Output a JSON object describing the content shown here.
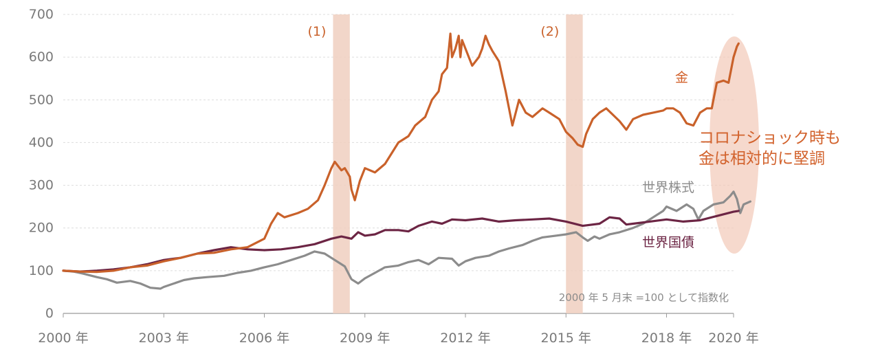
{
  "chart_data": {
    "type": "line",
    "title": "",
    "xlabel": "",
    "ylabel": "",
    "xlim": [
      2000.0,
      2020.0
    ],
    "ylim": [
      0,
      700
    ],
    "yticks": [
      0,
      100,
      200,
      300,
      400,
      500,
      600,
      700
    ],
    "xtick_labels": [
      {
        "x": 2000,
        "label": "2000 年"
      },
      {
        "x": 2003,
        "label": "2003 年"
      },
      {
        "x": 2006,
        "label": "2006 年"
      },
      {
        "x": 2009,
        "label": "2009 年"
      },
      {
        "x": 2012,
        "label": "2012 年"
      },
      {
        "x": 2015,
        "label": "2015 年"
      },
      {
        "x": 2018,
        "label": "2018 年"
      },
      {
        "x": 2020,
        "label": "2020 年"
      }
    ],
    "grid": "horizontal dashed",
    "shaded_periods": [
      {
        "label": "(1)",
        "start": 2008.05,
        "end": 2008.55
      },
      {
        "label": "(2)",
        "start": 2015.0,
        "end": 2015.5
      }
    ],
    "note": "2000 年 5 月末 =100 として指数化",
    "highlight_text": [
      "コロナショック時も",
      "金は相対的に堅調"
    ],
    "series": [
      {
        "name": "金",
        "color": "#c9612a",
        "label_color": "#d2622c",
        "points": [
          [
            2000.0,
            100
          ],
          [
            2000.5,
            98
          ],
          [
            2001.0,
            97
          ],
          [
            2001.5,
            100
          ],
          [
            2002.0,
            108
          ],
          [
            2002.5,
            112
          ],
          [
            2003.0,
            122
          ],
          [
            2003.5,
            130
          ],
          [
            2004.0,
            140
          ],
          [
            2004.5,
            142
          ],
          [
            2005.0,
            150
          ],
          [
            2005.5,
            155
          ],
          [
            2006.0,
            175
          ],
          [
            2006.2,
            210
          ],
          [
            2006.4,
            235
          ],
          [
            2006.6,
            225
          ],
          [
            2007.0,
            235
          ],
          [
            2007.3,
            245
          ],
          [
            2007.6,
            265
          ],
          [
            2007.8,
            300
          ],
          [
            2008.0,
            340
          ],
          [
            2008.1,
            355
          ],
          [
            2008.3,
            335
          ],
          [
            2008.4,
            340
          ],
          [
            2008.55,
            320
          ],
          [
            2008.6,
            290
          ],
          [
            2008.7,
            265
          ],
          [
            2008.85,
            310
          ],
          [
            2009.0,
            340
          ],
          [
            2009.3,
            330
          ],
          [
            2009.6,
            350
          ],
          [
            2010.0,
            400
          ],
          [
            2010.3,
            415
          ],
          [
            2010.5,
            440
          ],
          [
            2010.8,
            460
          ],
          [
            2011.0,
            500
          ],
          [
            2011.2,
            520
          ],
          [
            2011.3,
            560
          ],
          [
            2011.45,
            575
          ],
          [
            2011.55,
            655
          ],
          [
            2011.6,
            600
          ],
          [
            2011.7,
            620
          ],
          [
            2011.8,
            650
          ],
          [
            2011.85,
            600
          ],
          [
            2011.9,
            640
          ],
          [
            2012.0,
            620
          ],
          [
            2012.2,
            580
          ],
          [
            2012.4,
            600
          ],
          [
            2012.5,
            620
          ],
          [
            2012.6,
            650
          ],
          [
            2012.7,
            630
          ],
          [
            2012.8,
            615
          ],
          [
            2013.0,
            590
          ],
          [
            2013.2,
            520
          ],
          [
            2013.4,
            440
          ],
          [
            2013.6,
            500
          ],
          [
            2013.8,
            470
          ],
          [
            2014.0,
            460
          ],
          [
            2014.3,
            480
          ],
          [
            2014.5,
            470
          ],
          [
            2014.8,
            455
          ],
          [
            2015.0,
            425
          ],
          [
            2015.2,
            410
          ],
          [
            2015.35,
            395
          ],
          [
            2015.5,
            390
          ],
          [
            2015.6,
            420
          ],
          [
            2015.8,
            455
          ],
          [
            2016.0,
            470
          ],
          [
            2016.2,
            480
          ],
          [
            2016.4,
            465
          ],
          [
            2016.6,
            450
          ],
          [
            2016.8,
            430
          ],
          [
            2017.0,
            455
          ],
          [
            2017.3,
            465
          ],
          [
            2017.6,
            470
          ],
          [
            2017.9,
            475
          ],
          [
            2018.0,
            480
          ],
          [
            2018.2,
            480
          ],
          [
            2018.4,
            470
          ],
          [
            2018.6,
            445
          ],
          [
            2018.8,
            440
          ],
          [
            2019.0,
            470
          ],
          [
            2019.2,
            480
          ],
          [
            2019.35,
            480
          ],
          [
            2019.5,
            540
          ],
          [
            2019.7,
            545
          ],
          [
            2019.85,
            540
          ],
          [
            2020.0,
            600
          ],
          [
            2020.1,
            625
          ],
          [
            2020.15,
            632
          ]
        ]
      },
      {
        "name": "世界国債",
        "color": "#6c2544",
        "label_color": "#6c2544",
        "points": [
          [
            2000.0,
            100
          ],
          [
            2000.5,
            98
          ],
          [
            2001.0,
            100
          ],
          [
            2001.5,
            103
          ],
          [
            2002.0,
            108
          ],
          [
            2002.5,
            115
          ],
          [
            2003.0,
            125
          ],
          [
            2003.5,
            130
          ],
          [
            2004.0,
            140
          ],
          [
            2004.5,
            148
          ],
          [
            2005.0,
            155
          ],
          [
            2005.5,
            150
          ],
          [
            2006.0,
            148
          ],
          [
            2006.5,
            150
          ],
          [
            2007.0,
            155
          ],
          [
            2007.5,
            162
          ],
          [
            2008.0,
            175
          ],
          [
            2008.3,
            180
          ],
          [
            2008.6,
            175
          ],
          [
            2008.8,
            190
          ],
          [
            2009.0,
            182
          ],
          [
            2009.3,
            185
          ],
          [
            2009.6,
            195
          ],
          [
            2010.0,
            195
          ],
          [
            2010.3,
            192
          ],
          [
            2010.6,
            205
          ],
          [
            2011.0,
            215
          ],
          [
            2011.3,
            210
          ],
          [
            2011.6,
            220
          ],
          [
            2012.0,
            218
          ],
          [
            2012.5,
            222
          ],
          [
            2013.0,
            215
          ],
          [
            2013.5,
            218
          ],
          [
            2014.0,
            220
          ],
          [
            2014.5,
            222
          ],
          [
            2015.0,
            215
          ],
          [
            2015.5,
            205
          ],
          [
            2016.0,
            210
          ],
          [
            2016.3,
            225
          ],
          [
            2016.6,
            222
          ],
          [
            2016.8,
            208
          ],
          [
            2017.0,
            210
          ],
          [
            2017.5,
            215
          ],
          [
            2018.0,
            220
          ],
          [
            2018.5,
            215
          ],
          [
            2019.0,
            218
          ],
          [
            2019.5,
            228
          ],
          [
            2020.0,
            238
          ],
          [
            2020.15,
            240
          ]
        ]
      },
      {
        "name": "世界株式",
        "color": "#8c8c8c",
        "label_color": "#8c8c8c",
        "points": [
          [
            2000.0,
            100
          ],
          [
            2000.3,
            98
          ],
          [
            2000.6,
            93
          ],
          [
            2001.0,
            85
          ],
          [
            2001.3,
            80
          ],
          [
            2001.6,
            72
          ],
          [
            2002.0,
            76
          ],
          [
            2002.3,
            70
          ],
          [
            2002.6,
            60
          ],
          [
            2002.9,
            58
          ],
          [
            2003.0,
            62
          ],
          [
            2003.3,
            70
          ],
          [
            2003.6,
            78
          ],
          [
            2003.9,
            82
          ],
          [
            2004.3,
            85
          ],
          [
            2004.8,
            88
          ],
          [
            2005.2,
            95
          ],
          [
            2005.6,
            100
          ],
          [
            2006.0,
            108
          ],
          [
            2006.4,
            115
          ],
          [
            2006.8,
            125
          ],
          [
            2007.2,
            135
          ],
          [
            2007.5,
            145
          ],
          [
            2007.8,
            140
          ],
          [
            2008.1,
            125
          ],
          [
            2008.4,
            110
          ],
          [
            2008.6,
            80
          ],
          [
            2008.8,
            70
          ],
          [
            2009.0,
            82
          ],
          [
            2009.3,
            95
          ],
          [
            2009.6,
            108
          ],
          [
            2010.0,
            112
          ],
          [
            2010.3,
            120
          ],
          [
            2010.6,
            125
          ],
          [
            2010.9,
            115
          ],
          [
            2011.2,
            130
          ],
          [
            2011.6,
            128
          ],
          [
            2011.8,
            112
          ],
          [
            2012.0,
            122
          ],
          [
            2012.3,
            130
          ],
          [
            2012.7,
            135
          ],
          [
            2013.0,
            145
          ],
          [
            2013.3,
            152
          ],
          [
            2013.7,
            160
          ],
          [
            2014.0,
            170
          ],
          [
            2014.3,
            178
          ],
          [
            2014.7,
            182
          ],
          [
            2015.0,
            185
          ],
          [
            2015.3,
            190
          ],
          [
            2015.5,
            178
          ],
          [
            2015.65,
            170
          ],
          [
            2015.85,
            180
          ],
          [
            2016.0,
            175
          ],
          [
            2016.3,
            185
          ],
          [
            2016.6,
            190
          ],
          [
            2017.0,
            200
          ],
          [
            2017.3,
            210
          ],
          [
            2017.6,
            225
          ],
          [
            2017.9,
            240
          ],
          [
            2018.0,
            250
          ],
          [
            2018.3,
            240
          ],
          [
            2018.6,
            255
          ],
          [
            2018.8,
            245
          ],
          [
            2018.95,
            220
          ],
          [
            2019.1,
            240
          ],
          [
            2019.4,
            255
          ],
          [
            2019.7,
            260
          ],
          [
            2019.9,
            275
          ],
          [
            2020.0,
            285
          ],
          [
            2020.1,
            268
          ],
          [
            2020.2,
            235
          ],
          [
            2020.3,
            255
          ],
          [
            2020.5,
            262
          ]
        ]
      }
    ]
  }
}
